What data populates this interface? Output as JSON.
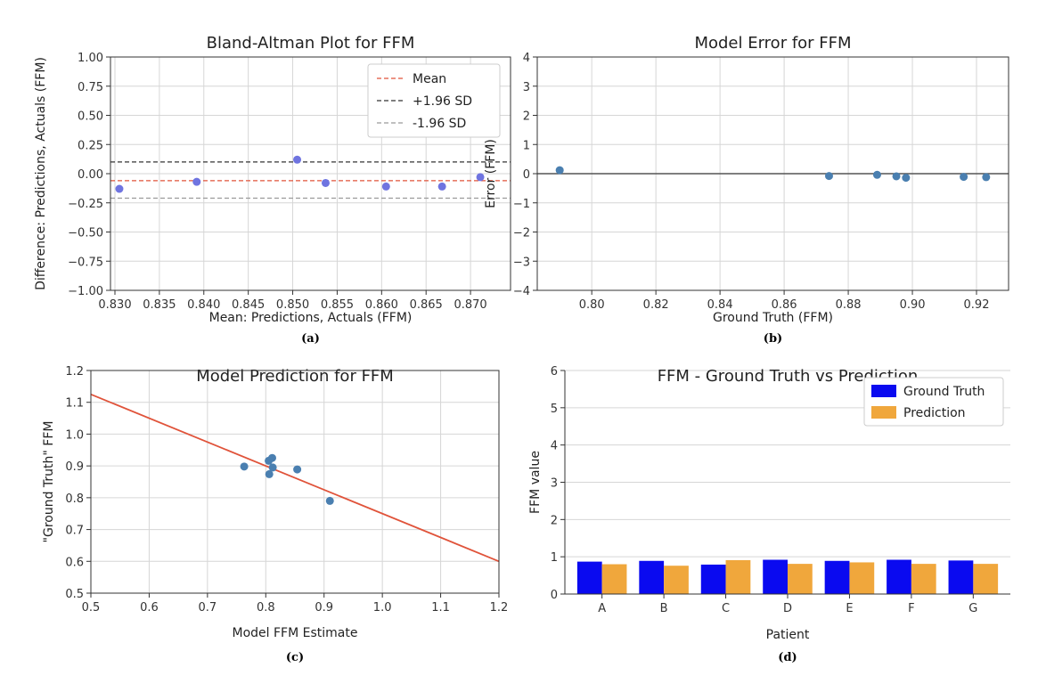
{
  "colors": {
    "scatter_ba": "#6f74e0",
    "scatter": "#4a7fb0",
    "mean_line": "#e0533a",
    "sd_upper": "#333333",
    "sd_lower": "#9a9a9a",
    "zero_line": "#555555",
    "fit_line": "#e0533a",
    "bar_gt": "#0a0af0",
    "bar_pred": "#f0a73c",
    "grid": "#d6d6d6"
  },
  "chart_data": [
    {
      "id": "a",
      "panel_label": "(a)",
      "type": "scatter",
      "title": "Bland-Altman Plot for FFM",
      "xlabel": "Mean: Predictions, Actuals (FFM)",
      "ylabel": "Difference: Predictions, Actuals (FFM)",
      "xlim": [
        0.8295,
        0.8745
      ],
      "ylim": [
        -1.0,
        1.0
      ],
      "xticks": [
        0.83,
        0.835,
        0.84,
        0.845,
        0.85,
        0.855,
        0.86,
        0.865,
        0.87
      ],
      "xticklabels": [
        "0.830",
        "0.835",
        "0.840",
        "0.845",
        "0.850",
        "0.855",
        "0.860",
        "0.865",
        "0.870"
      ],
      "yticks": [
        -1.0,
        -0.75,
        -0.5,
        -0.25,
        0.0,
        0.25,
        0.5,
        0.75,
        1.0
      ],
      "yticklabels": [
        "−1.00",
        "−0.75",
        "−0.50",
        "−0.25",
        "0.00",
        "0.25",
        "0.50",
        "0.75",
        "1.00"
      ],
      "grid": true,
      "points": {
        "x": [
          0.8305,
          0.8392,
          0.8505,
          0.8537,
          0.8605,
          0.8668,
          0.8711
        ],
        "y": [
          -0.13,
          -0.07,
          0.12,
          -0.08,
          -0.11,
          -0.11,
          -0.03
        ]
      },
      "hlines": [
        {
          "name": "Mean",
          "y": -0.06,
          "style": "mean"
        },
        {
          "name": "+1.96 SD",
          "y": 0.1,
          "style": "upper"
        },
        {
          "name": "-1.96 SD",
          "y": -0.21,
          "style": "lower"
        }
      ],
      "legend_position": "top-right"
    },
    {
      "id": "b",
      "panel_label": "(b)",
      "type": "scatter",
      "title": "Model Error for FFM",
      "xlabel": "Ground Truth (FFM)",
      "ylabel": "Error (FFM)",
      "xlim": [
        0.783,
        0.93
      ],
      "ylim": [
        -4,
        4
      ],
      "xticks": [
        0.8,
        0.82,
        0.84,
        0.86,
        0.88,
        0.9,
        0.92
      ],
      "xticklabels": [
        "0.80",
        "0.82",
        "0.84",
        "0.86",
        "0.88",
        "0.90",
        "0.92"
      ],
      "yticks": [
        -4,
        -3,
        -2,
        -1,
        0,
        1,
        2,
        3,
        4
      ],
      "yticklabels": [
        "−4",
        "−3",
        "−2",
        "−1",
        "0",
        "1",
        "2",
        "3",
        "4"
      ],
      "grid": true,
      "zero_line": 0,
      "points": {
        "x": [
          0.79,
          0.874,
          0.889,
          0.895,
          0.898,
          0.916,
          0.923
        ],
        "y": [
          0.12,
          -0.08,
          -0.04,
          -0.09,
          -0.14,
          -0.11,
          -0.12
        ]
      }
    },
    {
      "id": "c",
      "panel_label": "(c)",
      "type": "scatter",
      "title": "Model Prediction for FFM",
      "xlabel": "Model FFM Estimate",
      "ylabel": "\"Ground Truth\" FFM",
      "xlim": [
        0.5,
        1.2
      ],
      "ylim": [
        0.5,
        1.2
      ],
      "xticks": [
        0.5,
        0.6,
        0.7,
        0.8,
        0.9,
        1.0,
        1.1,
        1.2
      ],
      "xticklabels": [
        "0.5",
        "0.6",
        "0.7",
        "0.8",
        "0.9",
        "1.0",
        "1.1",
        "1.2"
      ],
      "yticks": [
        0.5,
        0.6,
        0.7,
        0.8,
        0.9,
        1.0,
        1.1,
        1.2
      ],
      "yticklabels": [
        "0.5",
        "0.6",
        "0.7",
        "0.8",
        "0.9",
        "1.0",
        "1.1",
        "1.2"
      ],
      "grid": true,
      "points": {
        "x": [
          0.763,
          0.805,
          0.806,
          0.811,
          0.812,
          0.854,
          0.91
        ],
        "y": [
          0.898,
          0.916,
          0.874,
          0.925,
          0.895,
          0.889,
          0.79
        ]
      },
      "fit_line": {
        "x": [
          0.5,
          1.2
        ],
        "y": [
          1.125,
          0.6
        ]
      }
    },
    {
      "id": "d",
      "panel_label": "(d)",
      "type": "bar",
      "title": "FFM - Ground Truth vs Prediction",
      "xlabel": "Patient",
      "ylabel": "FFM value",
      "ylim": [
        0,
        6
      ],
      "yticks": [
        0,
        1,
        2,
        3,
        4,
        5,
        6
      ],
      "yticklabels": [
        "0",
        "1",
        "2",
        "3",
        "4",
        "5",
        "6"
      ],
      "grid": "horizontal",
      "categories": [
        "A",
        "B",
        "C",
        "D",
        "E",
        "F",
        "G"
      ],
      "series": [
        {
          "name": "Ground Truth",
          "values": [
            0.87,
            0.89,
            0.79,
            0.92,
            0.89,
            0.92,
            0.9
          ],
          "color_key": "bar_gt"
        },
        {
          "name": "Prediction",
          "values": [
            0.8,
            0.76,
            0.91,
            0.81,
            0.85,
            0.81,
            0.81
          ],
          "color_key": "bar_pred"
        }
      ],
      "legend_position": "top-right"
    }
  ]
}
